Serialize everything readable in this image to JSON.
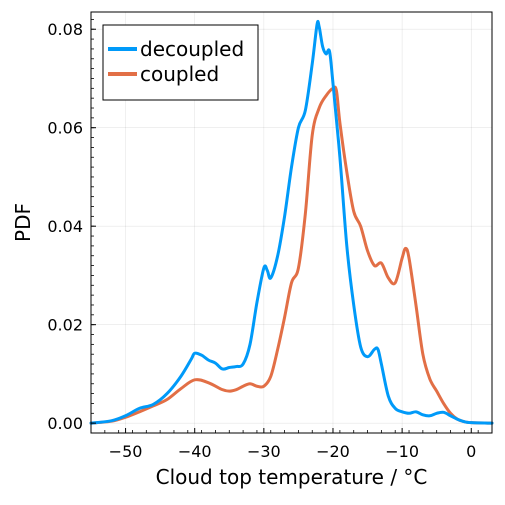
{
  "chart_data": {
    "type": "line",
    "xlabel": "Cloud top temperature / °C",
    "ylabel": "PDF",
    "xlim": [
      -55,
      3
    ],
    "ylim": [
      -0.002,
      0.0835
    ],
    "xticks": [
      -50,
      -40,
      -30,
      -20,
      -10,
      0
    ],
    "xtick_labels": [
      "−50",
      "−40",
      "−30",
      "−20",
      "−10",
      "0"
    ],
    "yticks": [
      0.0,
      0.02,
      0.04,
      0.06,
      0.08
    ],
    "ytick_labels": [
      "0.00",
      "0.02",
      "0.04",
      "0.06",
      "0.08"
    ],
    "grid": true,
    "legend_position": "top-left",
    "series": [
      {
        "name": "decoupled",
        "color": "#009af9",
        "points": [
          [
            -55,
            0.0
          ],
          [
            -52,
            0.0005
          ],
          [
            -50,
            0.0015
          ],
          [
            -48,
            0.003
          ],
          [
            -46,
            0.0038
          ],
          [
            -44,
            0.006
          ],
          [
            -42,
            0.0095
          ],
          [
            -40.5,
            0.013
          ],
          [
            -40,
            0.0142
          ],
          [
            -39,
            0.0138
          ],
          [
            -38,
            0.0128
          ],
          [
            -37,
            0.0122
          ],
          [
            -36,
            0.011
          ],
          [
            -35,
            0.0113
          ],
          [
            -34,
            0.0115
          ],
          [
            -33,
            0.012
          ],
          [
            -32,
            0.016
          ],
          [
            -31,
            0.0245
          ],
          [
            -30,
            0.0315
          ],
          [
            -29.5,
            0.031
          ],
          [
            -29,
            0.0295
          ],
          [
            -28,
            0.034
          ],
          [
            -27,
            0.042
          ],
          [
            -26,
            0.052
          ],
          [
            -25,
            0.06
          ],
          [
            -24,
            0.0635
          ],
          [
            -23,
            0.073
          ],
          [
            -22.3,
            0.081
          ],
          [
            -22,
            0.0805
          ],
          [
            -21.5,
            0.0765
          ],
          [
            -21,
            0.075
          ],
          [
            -20.5,
            0.0755
          ],
          [
            -20,
            0.069
          ],
          [
            -19,
            0.054
          ],
          [
            -18,
            0.036
          ],
          [
            -17,
            0.024
          ],
          [
            -16,
            0.0155
          ],
          [
            -15,
            0.0135
          ],
          [
            -14,
            0.015
          ],
          [
            -13.5,
            0.015
          ],
          [
            -13,
            0.012
          ],
          [
            -12,
            0.0055
          ],
          [
            -11,
            0.003
          ],
          [
            -10,
            0.0023
          ],
          [
            -9,
            0.002
          ],
          [
            -8,
            0.0023
          ],
          [
            -7,
            0.0017
          ],
          [
            -6,
            0.0015
          ],
          [
            -5,
            0.002
          ],
          [
            -4,
            0.0022
          ],
          [
            -3,
            0.0015
          ],
          [
            -2,
            0.0008
          ],
          [
            -1,
            0.0003
          ],
          [
            0,
            0.0001
          ],
          [
            3,
            0.0
          ]
        ]
      },
      {
        "name": "coupled",
        "color": "#e26f46",
        "points": [
          [
            -55,
            0.0
          ],
          [
            -52,
            0.0004
          ],
          [
            -50,
            0.0012
          ],
          [
            -48,
            0.0023
          ],
          [
            -46,
            0.0035
          ],
          [
            -44,
            0.0048
          ],
          [
            -42,
            0.007
          ],
          [
            -40,
            0.0088
          ],
          [
            -38,
            0.0082
          ],
          [
            -36,
            0.0068
          ],
          [
            -35,
            0.0065
          ],
          [
            -34,
            0.0068
          ],
          [
            -33,
            0.0075
          ],
          [
            -32,
            0.008
          ],
          [
            -31,
            0.0075
          ],
          [
            -30,
            0.0075
          ],
          [
            -29,
            0.0095
          ],
          [
            -28,
            0.015
          ],
          [
            -27,
            0.0215
          ],
          [
            -26,
            0.0285
          ],
          [
            -25,
            0.0315
          ],
          [
            -24,
            0.0425
          ],
          [
            -23,
            0.0585
          ],
          [
            -22,
            0.064
          ],
          [
            -21,
            0.0665
          ],
          [
            -20,
            0.068
          ],
          [
            -19.5,
            0.0675
          ],
          [
            -19,
            0.061
          ],
          [
            -18,
            0.051
          ],
          [
            -17,
            0.043
          ],
          [
            -16,
            0.04
          ],
          [
            -15,
            0.035
          ],
          [
            -14,
            0.032
          ],
          [
            -13,
            0.0325
          ],
          [
            -12,
            0.0295
          ],
          [
            -11,
            0.0285
          ],
          [
            -10,
            0.0335
          ],
          [
            -9.5,
            0.0355
          ],
          [
            -9,
            0.0335
          ],
          [
            -8,
            0.024
          ],
          [
            -7,
            0.014
          ],
          [
            -6,
            0.009
          ],
          [
            -5,
            0.0065
          ],
          [
            -4,
            0.004
          ],
          [
            -3,
            0.002
          ],
          [
            -2,
            0.0008
          ],
          [
            -1,
            0.0003
          ],
          [
            0,
            0.0001
          ],
          [
            3,
            0.0
          ]
        ]
      }
    ]
  }
}
